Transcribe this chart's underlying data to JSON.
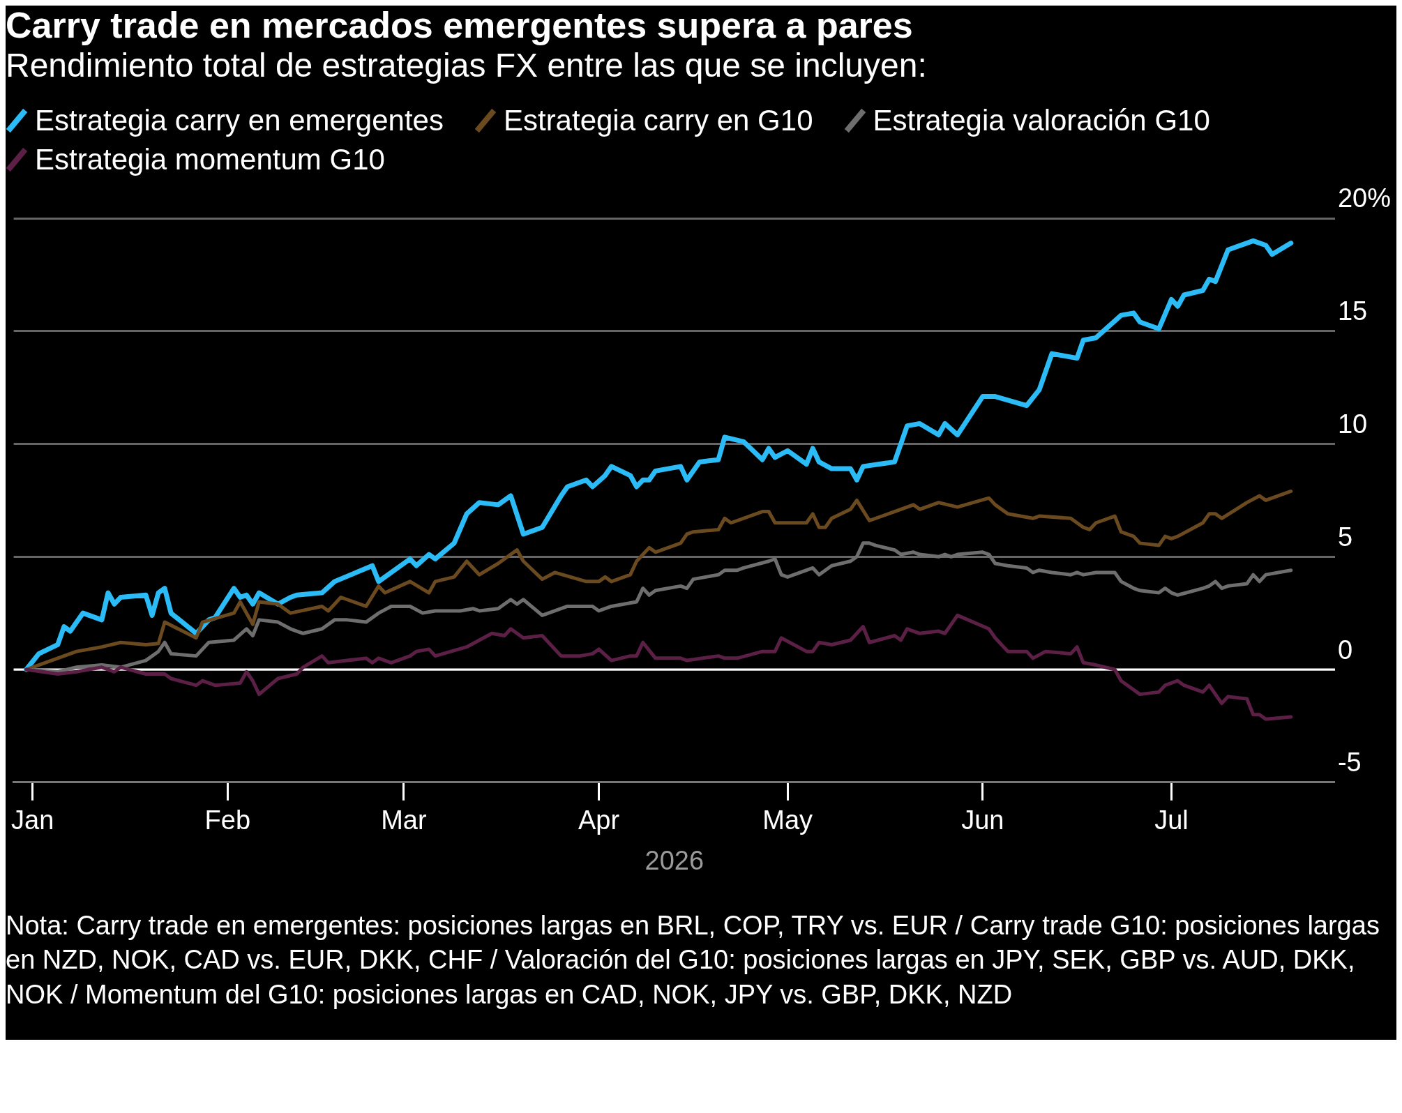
{
  "chart_data": {
    "type": "line",
    "title": "Carry trade en mercados emergentes supera a pares",
    "subtitle": "Rendimiento total de estrategias FX entre las que se incluyen:",
    "xlabel": "2026",
    "legend": "top left",
    "grid": "y",
    "marker": "none",
    "line_style": "solid",
    "xlim": [
      "2025-12-29",
      "2026-07-27"
    ],
    "xticks": [
      {
        "value": "2026-01-01",
        "label": "Jan"
      },
      {
        "value": "2026-02-01",
        "label": "Feb"
      },
      {
        "value": "2026-03-01",
        "label": "Mar"
      },
      {
        "value": "2026-04-01",
        "label": "Apr"
      },
      {
        "value": "2026-05-01",
        "label": "May"
      },
      {
        "value": "2026-06-01",
        "label": "Jun"
      },
      {
        "value": "2026-07-01",
        "label": "Jul"
      }
    ],
    "ylim": [
      -5,
      20
    ],
    "yticks": [
      -5,
      0,
      5,
      10,
      15,
      {
        "value": 20,
        "label": "20%"
      }
    ],
    "ref_lines": [
      {
        "axis": "y",
        "value": 0,
        "color": "#ffffff"
      }
    ],
    "series": [
      {
        "name": "Estrategia carry en emergentes",
        "color": "#2bbcf7",
        "x": [
          "2025-12-31",
          "2026-01-02",
          "2026-01-05",
          "2026-01-06",
          "2026-01-07",
          "2026-01-09",
          "2026-01-12",
          "2026-01-13",
          "2026-01-14",
          "2026-01-15",
          "2026-01-19",
          "2026-01-20",
          "2026-01-21",
          "2026-01-22",
          "2026-01-23",
          "2026-01-27",
          "2026-01-29",
          "2026-01-30",
          "2026-02-02",
          "2026-02-03",
          "2026-02-04",
          "2026-02-05",
          "2026-02-06",
          "2026-02-09",
          "2026-02-11",
          "2026-02-12",
          "2026-02-16",
          "2026-02-18",
          "2026-02-24",
          "2026-02-25",
          "2026-03-02",
          "2026-03-03",
          "2026-03-05",
          "2026-03-06",
          "2026-03-09",
          "2026-03-11",
          "2026-03-13",
          "2026-03-16",
          "2026-03-18",
          "2026-03-20",
          "2026-03-23",
          "2026-03-26",
          "2026-03-27",
          "2026-03-30",
          "2026-03-31",
          "2026-04-02",
          "2026-04-03",
          "2026-04-06",
          "2026-04-07",
          "2026-04-08",
          "2026-04-09",
          "2026-04-10",
          "2026-04-14",
          "2026-04-15",
          "2026-04-17",
          "2026-04-20",
          "2026-04-21",
          "2026-04-24",
          "2026-04-27",
          "2026-04-28",
          "2026-04-29",
          "2026-05-01",
          "2026-05-04",
          "2026-05-05",
          "2026-05-06",
          "2026-05-08",
          "2026-05-11",
          "2026-05-12",
          "2026-05-13",
          "2026-05-18",
          "2026-05-20",
          "2026-05-22",
          "2026-05-25",
          "2026-05-26",
          "2026-05-28",
          "2026-06-01",
          "2026-06-03",
          "2026-06-08",
          "2026-06-10",
          "2026-06-12",
          "2026-06-16",
          "2026-06-17",
          "2026-06-19",
          "2026-06-23",
          "2026-06-25",
          "2026-06-26",
          "2026-06-29",
          "2026-07-01",
          "2026-07-02",
          "2026-07-03",
          "2026-07-06",
          "2026-07-07",
          "2026-07-08",
          "2026-07-10",
          "2026-07-14",
          "2026-07-16",
          "2026-07-17",
          "2026-07-20"
        ],
        "values": [
          0,
          0.7,
          1.1,
          1.9,
          1.7,
          2.5,
          2.2,
          3.4,
          2.9,
          3.2,
          3.3,
          2.4,
          3.4,
          3.6,
          2.5,
          1.6,
          2.2,
          2.3,
          3.6,
          3.2,
          3.3,
          2.9,
          3.4,
          2.9,
          3.2,
          3.3,
          3.4,
          3.9,
          4.6,
          3.9,
          4.9,
          4.6,
          5.1,
          4.9,
          5.6,
          6.9,
          7.4,
          7.3,
          7.7,
          6.0,
          6.3,
          7.7,
          8.1,
          8.4,
          8.1,
          8.6,
          9.0,
          8.6,
          8.1,
          8.4,
          8.4,
          8.8,
          9.0,
          8.4,
          9.2,
          9.3,
          10.3,
          10.1,
          9.3,
          9.8,
          9.4,
          9.7,
          9.1,
          9.8,
          9.2,
          8.9,
          8.9,
          8.4,
          9.0,
          9.2,
          10.8,
          10.9,
          10.4,
          10.9,
          10.4,
          12.1,
          12.1,
          11.7,
          12.4,
          14.0,
          13.8,
          14.6,
          14.7,
          15.7,
          15.8,
          15.4,
          15.1,
          16.4,
          16.1,
          16.6,
          16.8,
          17.3,
          17.2,
          18.6,
          19.0,
          18.8,
          18.4,
          18.9
        ]
      },
      {
        "name": "Estrategia carry en G10",
        "color": "#6b4a1f",
        "x": [
          "2025-12-31",
          "2026-01-05",
          "2026-01-08",
          "2026-01-12",
          "2026-01-15",
          "2026-01-19",
          "2026-01-21",
          "2026-01-22",
          "2026-01-27",
          "2026-01-28",
          "2026-02-02",
          "2026-02-03",
          "2026-02-05",
          "2026-02-06",
          "2026-02-09",
          "2026-02-11",
          "2026-02-16",
          "2026-02-17",
          "2026-02-19",
          "2026-02-23",
          "2026-02-25",
          "2026-02-26",
          "2026-03-02",
          "2026-03-05",
          "2026-03-06",
          "2026-03-09",
          "2026-03-11",
          "2026-03-13",
          "2026-03-16",
          "2026-03-18",
          "2026-03-19",
          "2026-03-20",
          "2026-03-23",
          "2026-03-25",
          "2026-03-30",
          "2026-04-01",
          "2026-04-02",
          "2026-04-03",
          "2026-04-06",
          "2026-04-07",
          "2026-04-09",
          "2026-04-10",
          "2026-04-14",
          "2026-04-15",
          "2026-04-16",
          "2026-04-20",
          "2026-04-21",
          "2026-04-22",
          "2026-04-27",
          "2026-04-28",
          "2026-04-29",
          "2026-05-04",
          "2026-05-05",
          "2026-05-06",
          "2026-05-07",
          "2026-05-08",
          "2026-05-11",
          "2026-05-12",
          "2026-05-14",
          "2026-05-18",
          "2026-05-21",
          "2026-05-22",
          "2026-05-25",
          "2026-05-28",
          "2026-06-02",
          "2026-06-03",
          "2026-06-05",
          "2026-06-09",
          "2026-06-10",
          "2026-06-15",
          "2026-06-17",
          "2026-06-18",
          "2026-06-19",
          "2026-06-22",
          "2026-06-23",
          "2026-06-25",
          "2026-06-26",
          "2026-06-29",
          "2026-06-30",
          "2026-07-01",
          "2026-07-02",
          "2026-07-06",
          "2026-07-07",
          "2026-07-08",
          "2026-07-09",
          "2026-07-13",
          "2026-07-15",
          "2026-07-16",
          "2026-07-20"
        ],
        "values": [
          0,
          0.5,
          0.8,
          1.0,
          1.2,
          1.1,
          1.15,
          2.1,
          1.4,
          2.1,
          2.5,
          3.0,
          2.0,
          3.0,
          2.9,
          2.5,
          2.8,
          2.6,
          3.2,
          2.8,
          3.7,
          3.4,
          3.9,
          3.4,
          3.9,
          4.1,
          4.8,
          4.2,
          4.7,
          5.1,
          5.3,
          4.8,
          4.0,
          4.3,
          3.9,
          3.9,
          4.1,
          3.9,
          4.2,
          4.8,
          5.4,
          5.2,
          5.6,
          6.0,
          6.1,
          6.2,
          6.7,
          6.5,
          7.0,
          7.0,
          6.5,
          6.5,
          6.9,
          6.3,
          6.3,
          6.7,
          7.1,
          7.5,
          6.6,
          7.0,
          7.3,
          7.1,
          7.4,
          7.2,
          7.6,
          7.3,
          6.9,
          6.7,
          6.8,
          6.7,
          6.3,
          6.2,
          6.5,
          6.8,
          6.1,
          5.9,
          5.6,
          5.5,
          5.9,
          5.8,
          5.9,
          6.5,
          6.9,
          6.9,
          6.7,
          7.4,
          7.7,
          7.5,
          7.9
        ]
      },
      {
        "name": "Estrategia valoración G10",
        "color": "#6e6e6e",
        "x": [
          "2025-12-31",
          "2026-01-05",
          "2026-01-08",
          "2026-01-12",
          "2026-01-15",
          "2026-01-19",
          "2026-01-21",
          "2026-01-22",
          "2026-01-23",
          "2026-01-27",
          "2026-01-29",
          "2026-02-02",
          "2026-02-04",
          "2026-02-05",
          "2026-02-06",
          "2026-02-09",
          "2026-02-11",
          "2026-02-13",
          "2026-02-16",
          "2026-02-18",
          "2026-02-20",
          "2026-02-23",
          "2026-02-25",
          "2026-02-27",
          "2026-03-02",
          "2026-03-04",
          "2026-03-06",
          "2026-03-10",
          "2026-03-12",
          "2026-03-13",
          "2026-03-16",
          "2026-03-18",
          "2026-03-19",
          "2026-03-20",
          "2026-03-23",
          "2026-03-25",
          "2026-03-27",
          "2026-03-31",
          "2026-04-01",
          "2026-04-03",
          "2026-04-07",
          "2026-04-08",
          "2026-04-09",
          "2026-04-10",
          "2026-04-14",
          "2026-04-15",
          "2026-04-16",
          "2026-04-20",
          "2026-04-21",
          "2026-04-23",
          "2026-04-24",
          "2026-04-28",
          "2026-04-29",
          "2026-04-30",
          "2026-05-01",
          "2026-05-05",
          "2026-05-06",
          "2026-05-08",
          "2026-05-11",
          "2026-05-12",
          "2026-05-13",
          "2026-05-14",
          "2026-05-15",
          "2026-05-18",
          "2026-05-19",
          "2026-05-21",
          "2026-05-22",
          "2026-05-25",
          "2026-05-26",
          "2026-05-27",
          "2026-05-28",
          "2026-06-01",
          "2026-06-02",
          "2026-06-03",
          "2026-06-05",
          "2026-06-08",
          "2026-06-09",
          "2026-06-10",
          "2026-06-12",
          "2026-06-15",
          "2026-06-16",
          "2026-06-17",
          "2026-06-19",
          "2026-06-22",
          "2026-06-23",
          "2026-06-25",
          "2026-06-26",
          "2026-06-29",
          "2026-06-30",
          "2026-07-01",
          "2026-07-02",
          "2026-07-06",
          "2026-07-07",
          "2026-07-08",
          "2026-07-09",
          "2026-07-10",
          "2026-07-13",
          "2026-07-14",
          "2026-07-15",
          "2026-07-16",
          "2026-07-20"
        ],
        "values": [
          0,
          -0.1,
          0.1,
          0.2,
          0.1,
          0.4,
          0.8,
          1.2,
          0.7,
          0.6,
          1.2,
          1.3,
          1.8,
          1.5,
          2.2,
          2.1,
          1.8,
          1.6,
          1.8,
          2.2,
          2.2,
          2.1,
          2.5,
          2.8,
          2.8,
          2.5,
          2.6,
          2.6,
          2.7,
          2.6,
          2.7,
          3.1,
          2.9,
          3.1,
          2.4,
          2.6,
          2.8,
          2.8,
          2.6,
          2.8,
          3.0,
          3.6,
          3.3,
          3.5,
          3.7,
          3.6,
          4.0,
          4.2,
          4.4,
          4.4,
          4.5,
          4.8,
          4.9,
          4.2,
          4.1,
          4.5,
          4.2,
          4.6,
          4.8,
          5.0,
          5.6,
          5.6,
          5.5,
          5.3,
          5.1,
          5.2,
          5.1,
          5.0,
          5.1,
          5.0,
          5.1,
          5.2,
          5.1,
          4.7,
          4.6,
          4.5,
          4.3,
          4.4,
          4.3,
          4.2,
          4.3,
          4.2,
          4.3,
          4.3,
          3.9,
          3.6,
          3.5,
          3.4,
          3.6,
          3.4,
          3.3,
          3.6,
          3.7,
          3.9,
          3.6,
          3.7,
          3.8,
          4.2,
          3.9,
          4.2,
          4.4
        ]
      },
      {
        "name": "Estrategia momentum G10",
        "color": "#5c1f46",
        "x": [
          "2025-12-31",
          "2026-01-05",
          "2026-01-08",
          "2026-01-12",
          "2026-01-14",
          "2026-01-15",
          "2026-01-19",
          "2026-01-22",
          "2026-01-23",
          "2026-01-27",
          "2026-01-28",
          "2026-01-30",
          "2026-02-03",
          "2026-02-04",
          "2026-02-05",
          "2026-02-06",
          "2026-02-09",
          "2026-02-12",
          "2026-02-13",
          "2026-02-16",
          "2026-02-17",
          "2026-02-20",
          "2026-02-23",
          "2026-02-24",
          "2026-02-25",
          "2026-02-27",
          "2026-03-02",
          "2026-03-03",
          "2026-03-05",
          "2026-03-06",
          "2026-03-11",
          "2026-03-15",
          "2026-03-17",
          "2026-03-18",
          "2026-03-20",
          "2026-03-23",
          "2026-03-26",
          "2026-03-29",
          "2026-03-31",
          "2026-04-01",
          "2026-04-03",
          "2026-04-06",
          "2026-04-07",
          "2026-04-08",
          "2026-04-10",
          "2026-04-14",
          "2026-04-15",
          "2026-04-20",
          "2026-04-21",
          "2026-04-23",
          "2026-04-27",
          "2026-04-29",
          "2026-04-30",
          "2026-05-04",
          "2026-05-05",
          "2026-05-06",
          "2026-05-08",
          "2026-05-11",
          "2026-05-13",
          "2026-05-14",
          "2026-05-18",
          "2026-05-19",
          "2026-05-20",
          "2026-05-22",
          "2026-05-25",
          "2026-05-26",
          "2026-05-28",
          "2026-06-02",
          "2026-06-03",
          "2026-06-05",
          "2026-06-08",
          "2026-06-09",
          "2026-06-11",
          "2026-06-15",
          "2026-06-16",
          "2026-06-17",
          "2026-06-19",
          "2026-06-22",
          "2026-06-23",
          "2026-06-26",
          "2026-06-29",
          "2026-06-30",
          "2026-07-02",
          "2026-07-03",
          "2026-07-06",
          "2026-07-07",
          "2026-07-09",
          "2026-07-10",
          "2026-07-13",
          "2026-07-14",
          "2026-07-15",
          "2026-07-16",
          "2026-07-20"
        ],
        "values": [
          0,
          -0.2,
          -0.1,
          0.1,
          -0.1,
          0.1,
          -0.2,
          -0.2,
          -0.4,
          -0.7,
          -0.5,
          -0.7,
          -0.6,
          -0.1,
          -0.5,
          -1.1,
          -0.4,
          -0.2,
          0.1,
          0.6,
          0.3,
          0.4,
          0.5,
          0.3,
          0.5,
          0.3,
          0.6,
          0.8,
          0.9,
          0.6,
          1.0,
          1.6,
          1.5,
          1.8,
          1.4,
          1.5,
          0.6,
          0.6,
          0.7,
          0.9,
          0.4,
          0.6,
          0.6,
          1.2,
          0.5,
          0.5,
          0.4,
          0.6,
          0.5,
          0.5,
          0.8,
          0.8,
          1.4,
          0.8,
          0.8,
          1.2,
          1.1,
          1.3,
          1.9,
          1.2,
          1.5,
          1.3,
          1.8,
          1.6,
          1.7,
          1.6,
          2.4,
          1.8,
          1.4,
          0.8,
          0.8,
          0.5,
          0.8,
          0.7,
          1.0,
          0.3,
          0.2,
          0.0,
          -0.5,
          -1.1,
          -1.0,
          -0.7,
          -0.5,
          -0.7,
          -1.0,
          -0.7,
          -1.5,
          -1.2,
          -1.3,
          -2.0,
          -2.0,
          -2.2,
          -2.1
        ]
      }
    ],
    "annotations": [
      "Nota: Carry trade en emergentes: posiciones largas en BRL, COP, TRY vs. EUR / Carry trade G10: posiciones largas en NZD, NOK, CAD vs. EUR, DKK, CHF / Valoración del G10: posiciones largas en JPY, SEK, GBP vs. AUD, DKK, NOK / Momentum del G10: posiciones largas en CAD, NOK, JPY vs. GBP, DKK, NZD"
    ]
  }
}
